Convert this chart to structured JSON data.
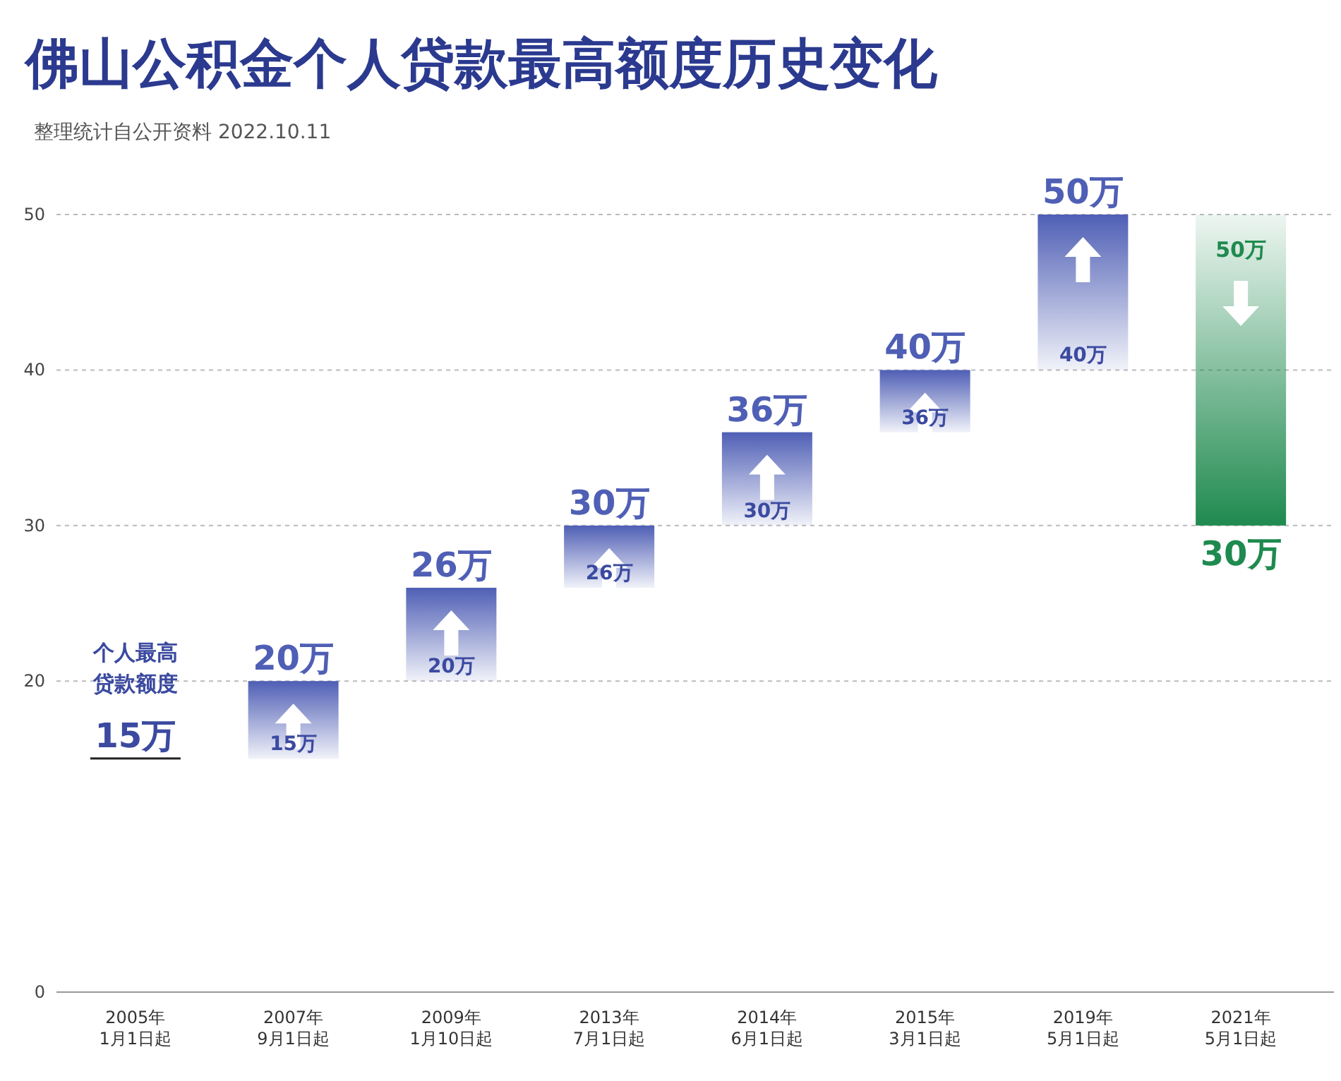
{
  "chart_data": {
    "type": "bar",
    "title": "佛山公积金个人贷款最高额度历史变化",
    "subtitle": "整理统计自公开资料 2022.10.11",
    "categories": [
      "2005年 1月1日起",
      "2007年 9月1日起",
      "2009年 1月10日起",
      "2013年 7月1日起",
      "2014年 6月1日起",
      "2015年 3月1日起",
      "2019年 5月1日起",
      "2021年 5月1日起"
    ],
    "base": [
      15,
      15,
      20,
      26,
      30,
      36,
      40,
      50
    ],
    "values": [
      0,
      5,
      6,
      4,
      6,
      4,
      10,
      -20
    ],
    "colors": [
      "#222222",
      "#4f5fb5",
      "#4f5fb5",
      "#4f5fb5",
      "#4f5fb5",
      "#4f5fb5",
      "#4f5fb5",
      "#1f8a4f"
    ],
    "value_labels": [
      "15万",
      "20万",
      "26万",
      "30万",
      "36万",
      "40万",
      "50万",
      "30万"
    ],
    "annotations": [
      {
        "text": "个人最高贷款额度",
        "x": "2005年 1月1日起",
        "y": 15
      },
      {
        "text": "15万",
        "x": "2007年 9月1日起",
        "y": 15
      },
      {
        "text": "20万",
        "x": "2009年 1月10日起",
        "y": 20
      },
      {
        "text": "26万",
        "x": "2013年 7月1日起",
        "y": 26
      },
      {
        "text": "30万",
        "x": "2014年 6月1日起",
        "y": 30
      },
      {
        "text": "36万",
        "x": "2015年 3月1日起",
        "y": 36
      },
      {
        "text": "40万",
        "x": "2019年 5月1日起",
        "y": 40
      },
      {
        "text": "50万",
        "x": "2021年 5月1日起",
        "y": 50
      }
    ],
    "ylim": [
      0,
      50
    ],
    "yticks": [
      0,
      20,
      30,
      40,
      50
    ],
    "grid": "y"
  }
}
